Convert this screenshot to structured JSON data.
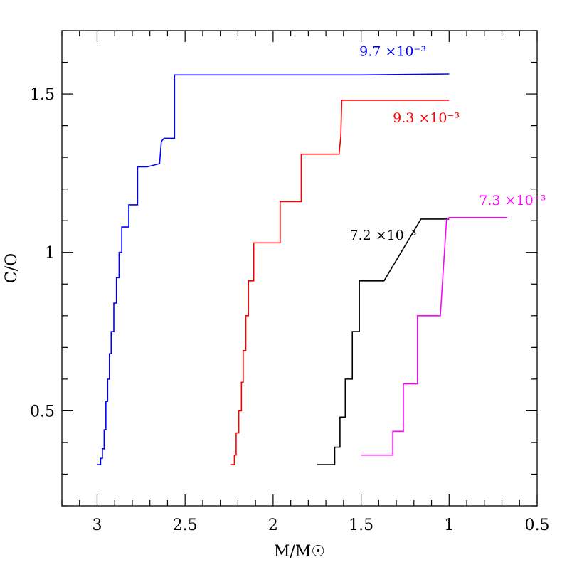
{
  "chart_data": {
    "type": "line",
    "xlabel": "M/M☉",
    "ylabel": "C/O",
    "xlim": [
      3.2,
      0.5
    ],
    "ylim": [
      0.2,
      1.7
    ],
    "x_reversed": true,
    "grid": false,
    "x_major_ticks": [
      3,
      2.5,
      2,
      1.5,
      1,
      0.5
    ],
    "x_tick_labels": [
      "3",
      "2.5",
      "2",
      "1.5",
      "1",
      "0.5"
    ],
    "x_minor_step": 0.1,
    "y_major_ticks": [
      0.5,
      1,
      1.5
    ],
    "y_tick_labels": [
      "0.5",
      "1",
      "1.5"
    ],
    "y_minor_step": 0.1,
    "series": [
      {
        "color": "#0000ff",
        "label": "9.7 ×10⁻³",
        "label_pos": [
          1.51,
          1.62
        ],
        "points": [
          [
            3.0,
            0.33
          ],
          [
            2.98,
            0.33
          ],
          [
            2.98,
            0.35
          ],
          [
            2.97,
            0.35
          ],
          [
            2.97,
            0.38
          ],
          [
            2.96,
            0.38
          ],
          [
            2.96,
            0.44
          ],
          [
            2.95,
            0.44
          ],
          [
            2.95,
            0.53
          ],
          [
            2.94,
            0.53
          ],
          [
            2.94,
            0.6
          ],
          [
            2.93,
            0.6
          ],
          [
            2.93,
            0.68
          ],
          [
            2.92,
            0.68
          ],
          [
            2.92,
            0.75
          ],
          [
            2.905,
            0.75
          ],
          [
            2.905,
            0.84
          ],
          [
            2.89,
            0.84
          ],
          [
            2.89,
            0.92
          ],
          [
            2.875,
            0.92
          ],
          [
            2.875,
            1.0
          ],
          [
            2.86,
            1.0
          ],
          [
            2.86,
            1.08
          ],
          [
            2.82,
            1.08
          ],
          [
            2.82,
            1.15
          ],
          [
            2.77,
            1.15
          ],
          [
            2.77,
            1.27
          ],
          [
            2.715,
            1.27
          ],
          [
            2.715,
            1.27
          ],
          [
            2.645,
            1.28
          ],
          [
            2.635,
            1.35
          ],
          [
            2.62,
            1.36
          ],
          [
            2.56,
            1.36
          ],
          [
            2.56,
            1.56
          ],
          [
            2.0,
            1.56
          ],
          [
            1.5,
            1.56
          ],
          [
            1.0,
            1.563
          ]
        ]
      },
      {
        "color": "#ff0000",
        "label": "9.3 ×10⁻³",
        "label_pos": [
          1.32,
          1.41
        ],
        "points": [
          [
            2.24,
            0.33
          ],
          [
            2.22,
            0.33
          ],
          [
            2.22,
            0.36
          ],
          [
            2.21,
            0.36
          ],
          [
            2.21,
            0.43
          ],
          [
            2.195,
            0.43
          ],
          [
            2.195,
            0.5
          ],
          [
            2.18,
            0.5
          ],
          [
            2.18,
            0.59
          ],
          [
            2.17,
            0.59
          ],
          [
            2.17,
            0.69
          ],
          [
            2.155,
            0.69
          ],
          [
            2.155,
            0.8
          ],
          [
            2.14,
            0.8
          ],
          [
            2.14,
            0.91
          ],
          [
            2.11,
            0.91
          ],
          [
            2.11,
            1.03
          ],
          [
            2.06,
            1.03
          ],
          [
            2.06,
            1.03
          ],
          [
            1.96,
            1.03
          ],
          [
            1.96,
            1.16
          ],
          [
            1.84,
            1.16
          ],
          [
            1.84,
            1.31
          ],
          [
            1.625,
            1.31
          ],
          [
            1.615,
            1.37
          ],
          [
            1.61,
            1.48
          ],
          [
            1.0,
            1.48
          ]
        ]
      },
      {
        "color": "#000000",
        "label": "7.2 ×10⁻³",
        "label_pos": [
          1.565,
          1.04
        ],
        "points": [
          [
            1.75,
            0.33
          ],
          [
            1.65,
            0.33
          ],
          [
            1.65,
            0.385
          ],
          [
            1.62,
            0.385
          ],
          [
            1.62,
            0.48
          ],
          [
            1.59,
            0.48
          ],
          [
            1.59,
            0.6
          ],
          [
            1.55,
            0.6
          ],
          [
            1.55,
            0.75
          ],
          [
            1.51,
            0.75
          ],
          [
            1.51,
            0.91
          ],
          [
            1.37,
            0.91
          ],
          [
            1.16,
            1.105
          ],
          [
            1.0,
            1.105
          ]
        ]
      },
      {
        "color": "#ff00ff",
        "label": "7.3 ×10⁻³",
        "label_pos": [
          0.83,
          1.15
        ],
        "points": [
          [
            1.5,
            0.36
          ],
          [
            1.32,
            0.36
          ],
          [
            1.32,
            0.435
          ],
          [
            1.26,
            0.435
          ],
          [
            1.26,
            0.585
          ],
          [
            1.18,
            0.585
          ],
          [
            1.18,
            0.8
          ],
          [
            1.05,
            0.8
          ],
          [
            1.05,
            0.8
          ],
          [
            1.015,
            1.1
          ],
          [
            1.0,
            1.11
          ],
          [
            0.67,
            1.11
          ]
        ]
      }
    ]
  }
}
